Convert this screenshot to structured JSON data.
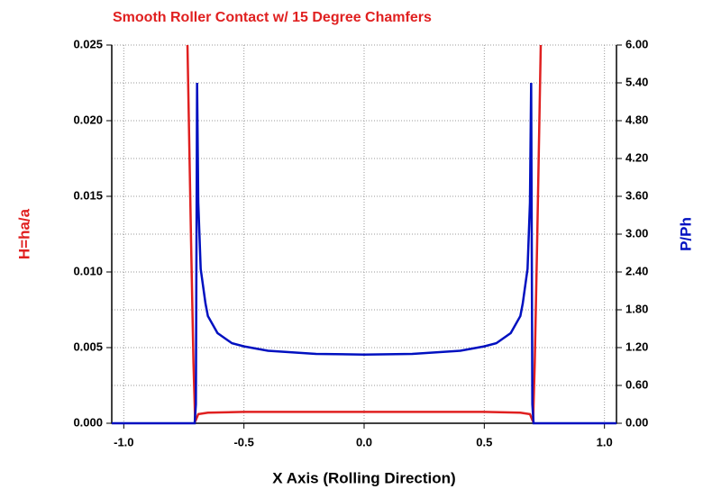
{
  "chart_data": {
    "type": "line",
    "title": "Smooth Roller Contact w/ 15 Degree Chamfers",
    "xlabel": "X Axis (Rolling Direction)",
    "ylabel": "H=ha/a",
    "y2label": "P/Ph",
    "xlim": [
      -1.05,
      1.05
    ],
    "xticks": [
      {
        "value": -1.0,
        "label": "-1.0"
      },
      {
        "value": -0.5,
        "label": "-0.5"
      },
      {
        "value": 0,
        "label": "0.0"
      },
      {
        "value": 0.5,
        "label": "0.5"
      },
      {
        "value": 1.0,
        "label": "1.0"
      }
    ],
    "ylim": [
      0,
      0.025
    ],
    "yticks": [
      {
        "value": 0,
        "label": "0.000"
      },
      {
        "value": 0.005,
        "label": "0.005"
      },
      {
        "value": 0.01,
        "label": "0.010"
      },
      {
        "value": 0.015,
        "label": "0.015"
      },
      {
        "value": 0.02,
        "label": "0.020"
      },
      {
        "value": 0.025,
        "label": "0.025"
      }
    ],
    "y2lim": [
      0,
      6
    ],
    "y2ticks": [
      {
        "value": 0,
        "label": "0.00"
      },
      {
        "value": 0.6,
        "label": "0.60"
      },
      {
        "value": 1.2,
        "label": "1.20"
      },
      {
        "value": 1.8,
        "label": "1.80"
      },
      {
        "value": 2.4,
        "label": "2.40"
      },
      {
        "value": 3.0,
        "label": "3.00"
      },
      {
        "value": 3.6,
        "label": "3.60"
      },
      {
        "value": 4.2,
        "label": "4.20"
      },
      {
        "value": 4.8,
        "label": "4.80"
      },
      {
        "value": 5.4,
        "label": "5.40"
      },
      {
        "value": 6.0,
        "label": "6.00"
      }
    ],
    "grid": true,
    "series": [
      {
        "name": "H",
        "color": "#e02020",
        "axis": "y",
        "x": [
          -0.735,
          -0.72,
          -0.71,
          -0.703,
          -0.69,
          -0.65,
          -0.5,
          0,
          0.5,
          0.65,
          0.69,
          0.703,
          0.71,
          0.72,
          0.735
        ],
        "values": [
          0.025,
          0.012,
          0.004,
          0.0001,
          0.0006,
          0.0007,
          0.00075,
          0.00075,
          0.00075,
          0.0007,
          0.0006,
          0.0001,
          0.004,
          0.012,
          0.025
        ]
      },
      {
        "name": "P",
        "color": "#0010c0",
        "axis": "y2",
        "x": [
          -1.05,
          -0.705,
          -0.7,
          -0.695,
          -0.69,
          -0.68,
          -0.66,
          -0.65,
          -0.61,
          -0.55,
          -0.5,
          -0.4,
          -0.2,
          0,
          0.2,
          0.4,
          0.5,
          0.55,
          0.61,
          0.65,
          0.66,
          0.68,
          0.69,
          0.695,
          0.7,
          0.705,
          1.05
        ],
        "values": [
          0,
          0,
          0.3,
          5.4,
          3.5,
          2.45,
          1.9,
          1.7,
          1.43,
          1.27,
          1.22,
          1.15,
          1.1,
          1.09,
          1.1,
          1.15,
          1.22,
          1.27,
          1.43,
          1.7,
          1.9,
          2.45,
          3.5,
          5.4,
          0.3,
          0,
          0
        ]
      }
    ]
  }
}
